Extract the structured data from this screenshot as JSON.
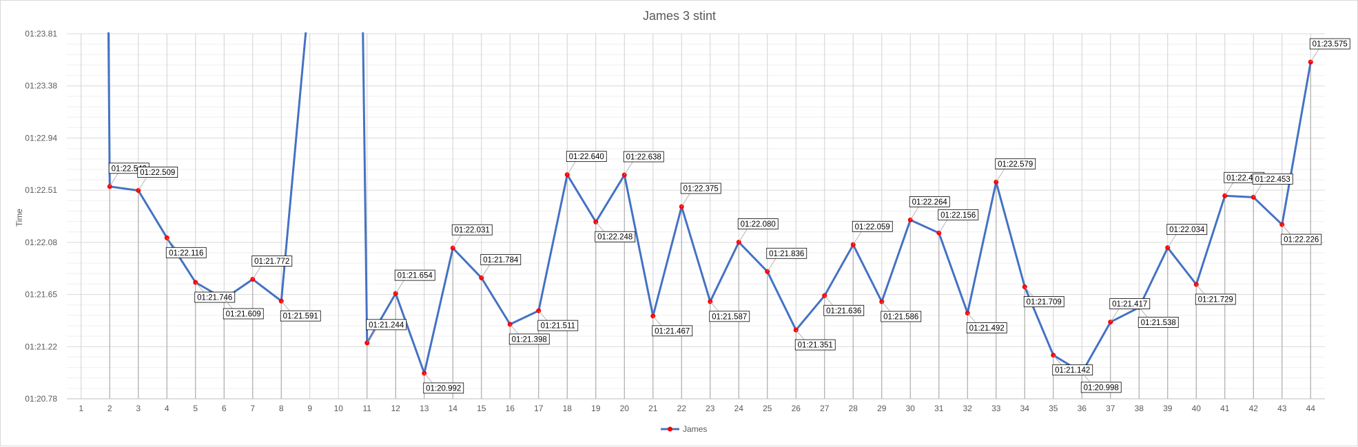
{
  "chart_data": {
    "type": "line",
    "title": "James 3 stint",
    "xlabel": "",
    "ylabel": "Time",
    "y_tick_labels": [
      "01:20.78",
      "01:21.22",
      "01:21.65",
      "01:22.08",
      "01:22.51",
      "01:22.94",
      "01:23.38",
      "01:23.81"
    ],
    "ylim": [
      80.78,
      83.81
    ],
    "categories": [
      "1",
      "2",
      "3",
      "4",
      "5",
      "6",
      "7",
      "8",
      "9",
      "10",
      "11",
      "12",
      "13",
      "14",
      "15",
      "16",
      "17",
      "18",
      "19",
      "20",
      "21",
      "22",
      "23",
      "24",
      "25",
      "26",
      "27",
      "28",
      "29",
      "30",
      "31",
      "32",
      "33",
      "34",
      "35",
      "36",
      "37",
      "38",
      "39",
      "40",
      "41",
      "42",
      "43",
      "44"
    ],
    "series": [
      {
        "name": "James",
        "color": "#4472c4",
        "marker_color": "#ff0000",
        "values": [
          null,
          82.542,
          82.509,
          82.116,
          81.746,
          81.609,
          81.772,
          81.591,
          84.2,
          null,
          81.244,
          81.654,
          80.992,
          82.031,
          81.784,
          81.398,
          81.511,
          82.64,
          82.248,
          82.638,
          81.467,
          82.375,
          81.587,
          82.08,
          81.836,
          81.351,
          81.636,
          82.059,
          81.586,
          82.264,
          82.156,
          81.492,
          82.579,
          81.709,
          81.142,
          80.998,
          81.417,
          81.538,
          82.034,
          81.729,
          82.465,
          82.453,
          82.226,
          83.575
        ],
        "data_labels": [
          null,
          "01:22.542",
          "01:22.509",
          "01:22.116",
          "01:21.746",
          "01:21.609",
          "01:21.772",
          "01:21.591",
          null,
          null,
          "01:21.244",
          "01:21.654",
          "01:20.992",
          "01:22.031",
          "01:21.784",
          "01:21.398",
          "01:21.511",
          "01:22.640",
          "01:22.248",
          "01:22.638",
          "01:21.467",
          "01:22.375",
          "01:21.587",
          "01:22.080",
          "01:21.836",
          "01:21.351",
          "01:21.636",
          "01:22.059",
          "01:21.586",
          "01:22.264",
          "01:22.156",
          "01:21.492",
          "01:22.579",
          "01:21.709",
          "01:21.142",
          "01:20.998",
          "01:21.417",
          "01:21.538",
          "01:22.034",
          "01:21.729",
          "01:22.465",
          "01:22.453",
          "01:22.226",
          "01:23.575"
        ]
      }
    ],
    "grid": true,
    "drop_lines": true,
    "legend_position": "bottom"
  }
}
